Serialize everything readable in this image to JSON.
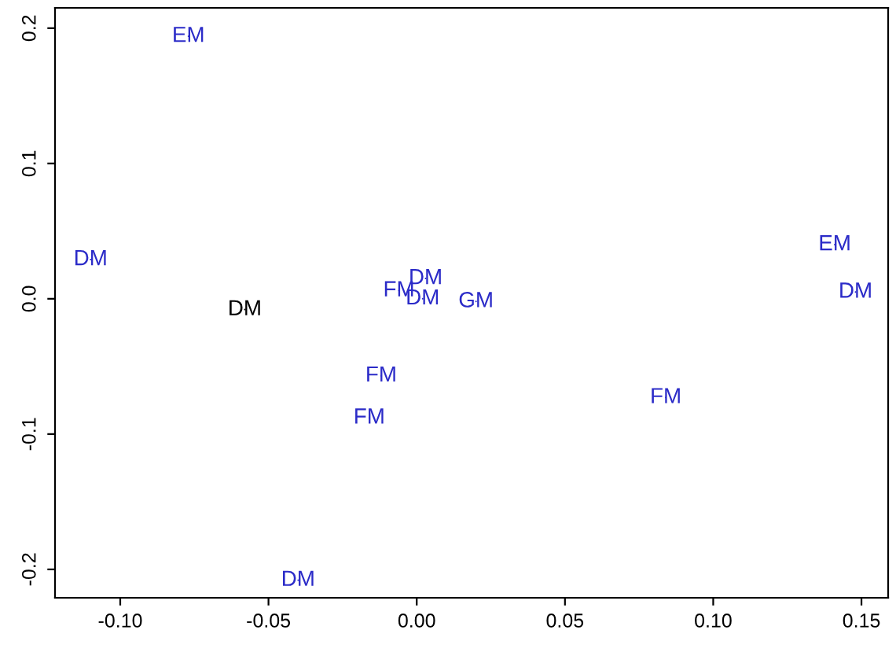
{
  "chart_data": {
    "type": "scatter",
    "x": [
      -0.077,
      -0.11,
      -0.058,
      -0.006,
      0.003,
      0.002,
      0.02,
      -0.012,
      -0.016,
      -0.04,
      0.084,
      0.141,
      0.148
    ],
    "values": [
      0.194,
      0.029,
      -0.008,
      0.006,
      0.015,
      0.0,
      -0.002,
      -0.057,
      -0.088,
      -0.208,
      -0.073,
      0.04,
      0.005
    ],
    "value_labels": [
      "EM",
      "DM",
      "DM",
      "FM",
      "DM",
      "DM",
      "GM",
      "FM",
      "FM",
      "DM",
      "FM",
      "EM",
      "DM"
    ],
    "colors": [
      "#2b2bc8",
      "#2b2bc8",
      "#000000",
      "#2b2bc8",
      "#2b2bc8",
      "#2b2bc8",
      "#2b2bc8",
      "#2b2bc8",
      "#2b2bc8",
      "#2b2bc8",
      "#2b2bc8",
      "#2b2bc8",
      "#2b2bc8"
    ],
    "grid": false,
    "legend": false,
    "xlim": [
      -0.122,
      0.159
    ],
    "ylim": [
      -0.221,
      0.215
    ],
    "xticks": [
      {
        "value": -0.1,
        "label": "-0.10"
      },
      {
        "value": -0.05,
        "label": "-0.05"
      },
      {
        "value": 0,
        "label": "0.00"
      },
      {
        "value": 0.05,
        "label": "0.05"
      },
      {
        "value": 0.1,
        "label": "0.10"
      },
      {
        "value": 0.15,
        "label": "0.15"
      }
    ],
    "yticks": [
      {
        "value": -0.2,
        "label": "-0.2"
      },
      {
        "value": -0.1,
        "label": "-0.1"
      },
      {
        "value": 0,
        "label": "0.0"
      },
      {
        "value": 0.1,
        "label": "0.1"
      },
      {
        "value": 0.2,
        "label": "0.2"
      }
    ]
  }
}
